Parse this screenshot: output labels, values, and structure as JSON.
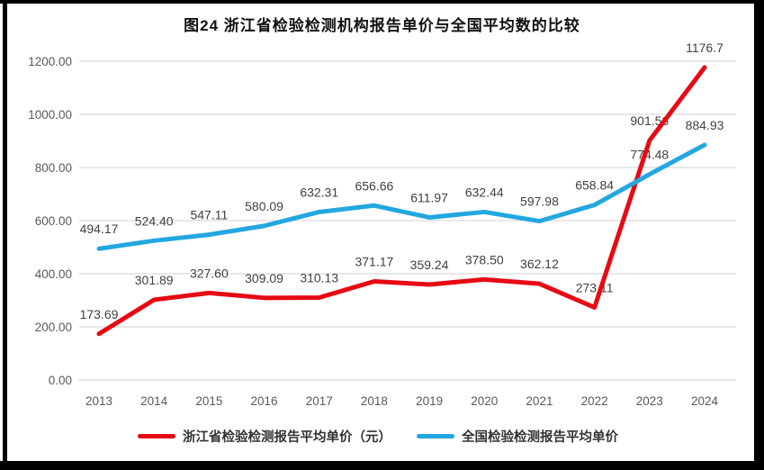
{
  "page": {
    "title": "图24  浙江省检验检测机构报告单价与全国平均数的比较"
  },
  "chart_data": {
    "type": "line",
    "title": "图24  浙江省检验检测机构报告单价与全国平均数的比较",
    "categories": [
      "2013",
      "2014",
      "2015",
      "2016",
      "2017",
      "2018",
      "2019",
      "2020",
      "2021",
      "2022",
      "2023",
      "2024"
    ],
    "series": [
      {
        "name": "浙江省检验检测报告平均单价（元）",
        "color": "#e60a14",
        "values": [
          173.69,
          301.89,
          327.6,
          309.09,
          310.13,
          371.17,
          359.24,
          378.5,
          362.12,
          273.11,
          901.56,
          1176.7
        ],
        "labels": [
          "173.69",
          "301.89",
          "327.60",
          "309.09",
          "310.13",
          "371.17",
          "359.24",
          "378.50",
          "362.12",
          "273.11",
          "901.56",
          "1176.7"
        ]
      },
      {
        "name": "全国检验检测报告平均单价",
        "color": "#23a7e0",
        "values": [
          494.17,
          524.4,
          547.11,
          580.09,
          632.31,
          656.66,
          611.97,
          632.44,
          597.98,
          658.84,
          774.48,
          884.93
        ],
        "labels": [
          "494.17",
          "524.40",
          "547.11",
          "580.09",
          "632.31",
          "656.66",
          "611.97",
          "632.44",
          "597.98",
          "658.84",
          "774.48",
          "884.93"
        ]
      }
    ],
    "xlabel": "",
    "ylabel": "",
    "ylim": [
      0,
      1200
    ],
    "y_tick_labels": [
      "0.00",
      "200.00",
      "400.00",
      "600.00",
      "800.00",
      "1000.00",
      "1200.00"
    ],
    "grid": true,
    "legend_position": "bottom"
  },
  "colors": {
    "grid": "#d9d9d9",
    "axis_text": "#595959",
    "data_label_text": "#404040",
    "frame": "#000000"
  }
}
